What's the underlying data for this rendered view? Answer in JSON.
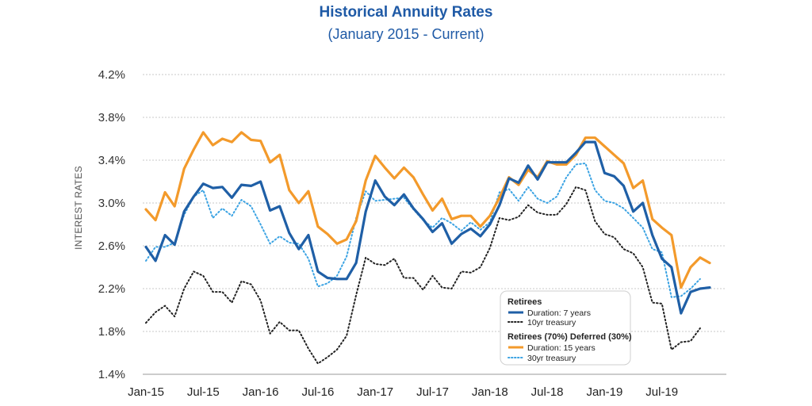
{
  "chart_data": {
    "type": "line",
    "title": "Historical Annuity Rates",
    "subtitle": "(January 2015 - Current)",
    "ylabel": "INTEREST RATES",
    "xlabel": "",
    "ylim": [
      1.4,
      4.2
    ],
    "yticks": [
      "4.2%",
      "3.8%",
      "3.4%",
      "3.0%",
      "2.6%",
      "2.2%",
      "1.8%",
      "1.4%"
    ],
    "ytick_values": [
      4.2,
      3.8,
      3.4,
      3.0,
      2.6,
      2.2,
      1.8,
      1.4
    ],
    "xticks": [
      "Jan-15",
      "Jul-15",
      "Jan-16",
      "Jul-16",
      "Jan-17",
      "Jul-17",
      "Jan-18",
      "Jul-18",
      "Jan-19",
      "Jul-19"
    ],
    "xtick_index": [
      0,
      6,
      12,
      18,
      24,
      30,
      36,
      42,
      48,
      54
    ],
    "grid": true,
    "legend_position": "bottom-right",
    "legend": {
      "group1_title": "Retirees",
      "group2_title": "Retirees (70%) Deferred (30%)"
    },
    "series": [
      {
        "name": "Duration: 15 years",
        "group": 2,
        "color": "#f39a2b",
        "dash": "solid",
        "values": [
          2.94,
          2.84,
          3.1,
          2.97,
          3.32,
          3.5,
          3.66,
          3.54,
          3.6,
          3.57,
          3.66,
          3.59,
          3.58,
          3.38,
          3.45,
          3.12,
          3.0,
          3.11,
          2.78,
          2.71,
          2.62,
          2.66,
          2.83,
          3.21,
          3.44,
          3.33,
          3.23,
          3.33,
          3.24,
          3.08,
          2.93,
          3.04,
          2.85,
          2.88,
          2.88,
          2.78,
          2.88,
          3.05,
          3.24,
          3.17,
          3.31,
          3.24,
          3.39,
          3.36,
          3.36,
          3.45,
          3.61,
          3.61,
          3.53,
          3.45,
          3.37,
          3.14,
          3.21,
          2.85,
          2.77,
          2.7,
          2.21,
          2.4,
          2.49,
          2.44
        ]
      },
      {
        "name": "Duration: 7 years",
        "group": 1,
        "color": "#1f5fa6",
        "dash": "solid",
        "values": [
          2.59,
          2.46,
          2.7,
          2.61,
          2.92,
          3.06,
          3.18,
          3.14,
          3.15,
          3.05,
          3.17,
          3.16,
          3.2,
          2.93,
          2.97,
          2.72,
          2.57,
          2.7,
          2.36,
          2.3,
          2.29,
          2.29,
          2.44,
          2.92,
          3.21,
          3.06,
          2.98,
          3.08,
          2.95,
          2.85,
          2.73,
          2.81,
          2.62,
          2.71,
          2.76,
          2.69,
          2.8,
          2.98,
          3.23,
          3.19,
          3.35,
          3.22,
          3.38,
          3.38,
          3.38,
          3.47,
          3.57,
          3.57,
          3.28,
          3.25,
          3.16,
          2.92,
          3.0,
          2.7,
          2.48,
          2.4,
          1.97,
          2.17,
          2.2,
          2.21
        ]
      },
      {
        "name": "30yr treasury",
        "group": 2,
        "color": "#3ba3e3",
        "dash": "dotted",
        "values": [
          2.46,
          2.59,
          2.59,
          2.63,
          2.89,
          3.06,
          3.12,
          2.86,
          2.95,
          2.88,
          3.03,
          2.97,
          2.8,
          2.62,
          2.69,
          2.63,
          2.62,
          2.48,
          2.22,
          2.25,
          2.32,
          2.5,
          2.86,
          3.11,
          3.02,
          3.03,
          3.04,
          3.05,
          2.94,
          2.84,
          2.77,
          2.86,
          2.81,
          2.74,
          2.82,
          2.75,
          2.82,
          3.1,
          3.13,
          3.02,
          3.15,
          3.04,
          3.0,
          3.06,
          3.24,
          3.36,
          3.37,
          3.12,
          3.02,
          3.0,
          2.95,
          2.86,
          2.77,
          2.57,
          2.54,
          2.12,
          2.13,
          2.2,
          2.29
        ]
      },
      {
        "name": "10yr treasury",
        "group": 1,
        "color": "#222222",
        "dash": "dotted",
        "values": [
          1.88,
          1.98,
          2.04,
          1.94,
          2.2,
          2.36,
          2.32,
          2.17,
          2.17,
          2.07,
          2.27,
          2.24,
          2.09,
          1.78,
          1.89,
          1.81,
          1.81,
          1.64,
          1.5,
          1.56,
          1.63,
          1.76,
          2.14,
          2.49,
          2.43,
          2.42,
          2.48,
          2.3,
          2.3,
          2.19,
          2.32,
          2.21,
          2.2,
          2.36,
          2.35,
          2.4,
          2.58,
          2.86,
          2.84,
          2.87,
          2.98,
          2.91,
          2.89,
          2.89,
          2.99,
          3.15,
          3.12,
          2.83,
          2.71,
          2.68,
          2.57,
          2.53,
          2.4,
          2.07,
          2.06,
          1.63,
          1.7,
          1.71,
          1.83
        ]
      }
    ]
  }
}
